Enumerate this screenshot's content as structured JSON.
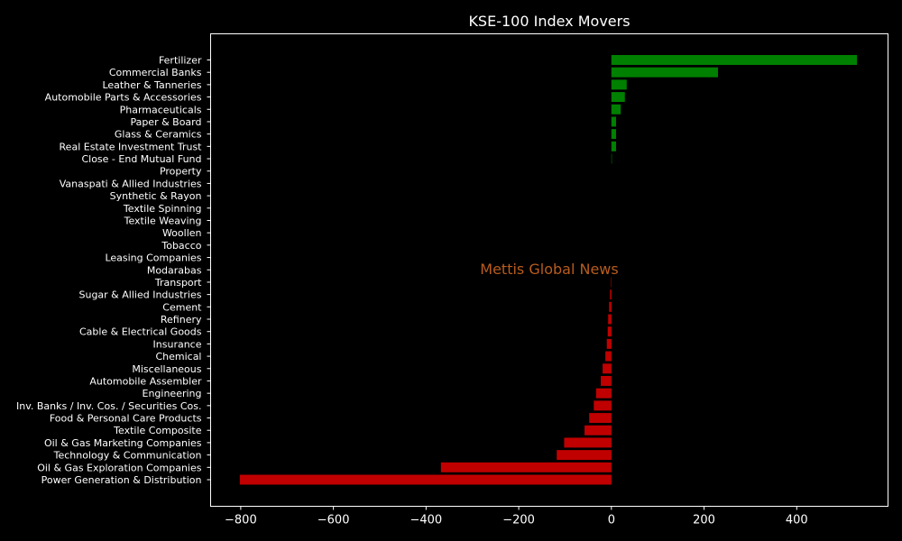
{
  "chart_data": {
    "type": "bar",
    "orientation": "horizontal",
    "title": "KSE-100 Index Movers",
    "xlabel": "",
    "ylabel": "",
    "xlim": [
      -865,
      597
    ],
    "xticks": [
      -800,
      -600,
      -400,
      -200,
      0,
      200,
      400
    ],
    "xtick_labels": [
      "−800",
      "−600",
      "−400",
      "−200",
      "0",
      "200",
      "400"
    ],
    "grid": false,
    "positive_color": "#008000",
    "negative_color": "#c00000",
    "background_color": "#000000",
    "text_color": "#ffffff",
    "categories": [
      "Fertilizer",
      "Commercial Banks",
      "Leather & Tanneries",
      "Automobile Parts & Accessories",
      "Pharmaceuticals",
      "Paper & Board",
      "Glass & Ceramics",
      "Real Estate Investment Trust",
      "Close - End Mutual Fund",
      "Property",
      "Vanaspati & Allied Industries",
      "Synthetic & Rayon",
      "Textile Spinning",
      "Textile Weaving",
      "Woollen",
      "Tobacco",
      "Leasing Companies",
      "Modarabas",
      "Transport",
      "Sugar & Allied Industries",
      "Cement",
      "Refinery",
      "Cable & Electrical Goods",
      "Insurance",
      "Chemical",
      "Miscellaneous",
      "Automobile Assembler",
      "Engineering",
      "Inv. Banks / Inv. Cos. / Securities Cos.",
      "Food & Personal Care Products",
      "Textile Composite",
      "Oil & Gas Marketing Companies",
      "Technology & Communication",
      "Oil & Gas Exploration Companies",
      "Power Generation & Distribution"
    ],
    "values": [
      530,
      230,
      33,
      29,
      20,
      10,
      10,
      10,
      1,
      0,
      0,
      0,
      0,
      0,
      0,
      0,
      0,
      0,
      -1,
      -3,
      -5,
      -7,
      -8,
      -10,
      -13,
      -19,
      -23,
      -33,
      -38,
      -48,
      -58,
      -102,
      -118,
      -368,
      -802
    ]
  },
  "watermark": {
    "text": "Mettis Global News",
    "color": "#b85c1e"
  }
}
